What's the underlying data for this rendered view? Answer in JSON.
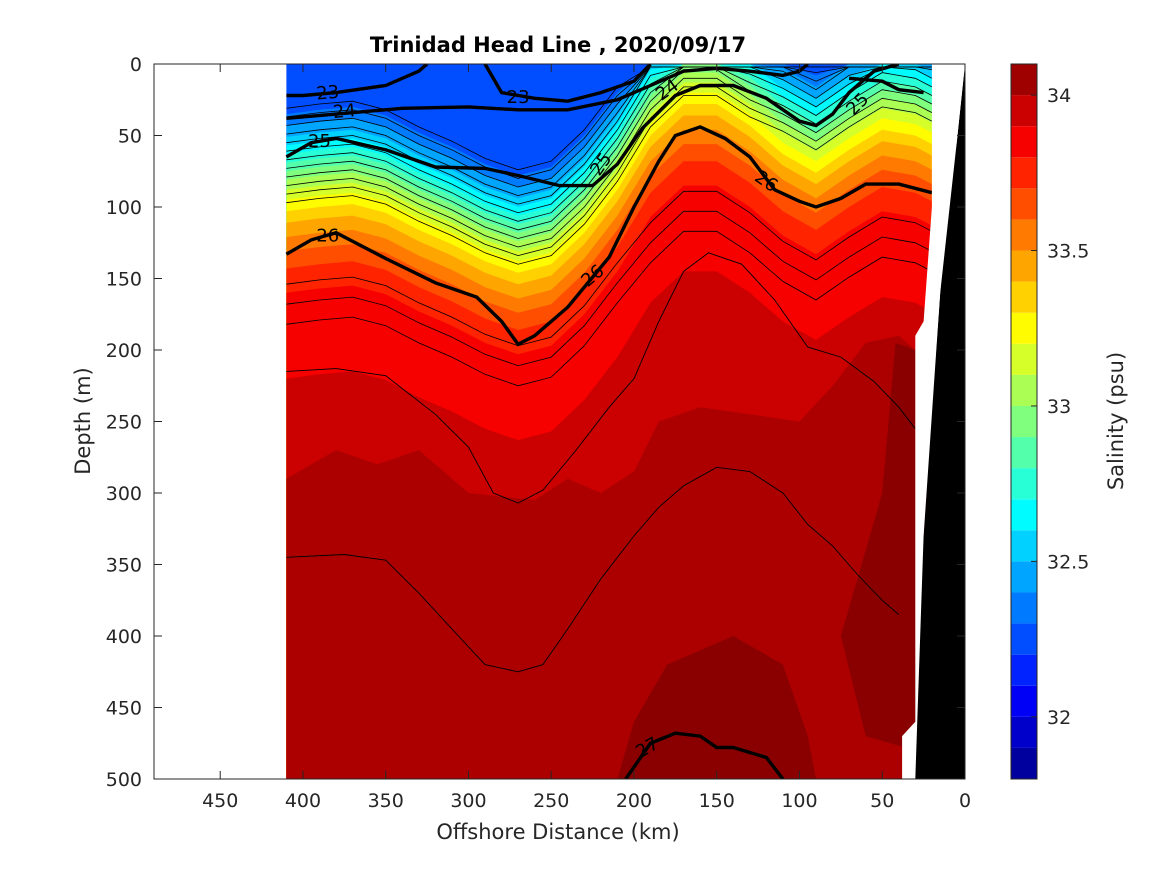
{
  "chart_data": {
    "type": "contourf",
    "title": "Trinidad Head Line , 2020/09/17",
    "xlabel": "Offshore Distance (km)",
    "ylabel": "Depth (m)",
    "xlim": [
      490,
      0
    ],
    "ylim": [
      0,
      500
    ],
    "x_reversed": true,
    "y_reversed": true,
    "xticks": [
      450,
      400,
      350,
      300,
      250,
      200,
      150,
      100,
      50,
      0
    ],
    "yticks": [
      0,
      50,
      100,
      150,
      200,
      250,
      300,
      350,
      400,
      450,
      500
    ],
    "data_extent_km": [
      410,
      20
    ],
    "colorbar": {
      "label": "Salinity (psu)",
      "range": [
        31.8,
        34.1
      ],
      "ticks": [
        32,
        32.5,
        33,
        33.5,
        34
      ],
      "levels": [
        31.8,
        31.9,
        32.0,
        32.1,
        32.2,
        32.3,
        32.4,
        32.5,
        32.6,
        32.7,
        32.8,
        32.9,
        33.0,
        33.1,
        33.2,
        33.3,
        33.4,
        33.5,
        33.6,
        33.7,
        33.8,
        33.9,
        34.0,
        34.1
      ],
      "colormap": "jet"
    },
    "salinity_fields": {
      "description": "Approximate salinity in data units at selected depths (km offshore)",
      "x_km": [
        410,
        360,
        310,
        260,
        210,
        160,
        110,
        60,
        20
      ],
      "surface": [
        32.3,
        32.3,
        32.2,
        32.0,
        32.3,
        32.9,
        32.7,
        33.1,
        32.9
      ],
      "halocline_depth_m": [
        140,
        165,
        190,
        230,
        150,
        45,
        120,
        90,
        100
      ]
    },
    "sigma_contours": {
      "labeled_levels": [
        23,
        24,
        25,
        26,
        27
      ],
      "series": [
        {
          "level": 23,
          "x": [
            410,
            400,
            380,
            350,
            330,
            325
          ],
          "y": [
            22,
            22,
            20,
            15,
            5,
            0
          ]
        },
        {
          "level": 23,
          "x": [
            290,
            280,
            260,
            240,
            220,
            200,
            190
          ],
          "y": [
            0,
            20,
            24,
            26,
            20,
            12,
            0
          ]
        },
        {
          "level": 24,
          "x": [
            410,
            380,
            340,
            300,
            270,
            240,
            210,
            190,
            170,
            150,
            130,
            110,
            100,
            95
          ],
          "y": [
            38,
            35,
            31,
            30,
            32,
            32,
            25,
            15,
            5,
            3,
            5,
            8,
            5,
            0
          ]
        },
        {
          "level": 24,
          "x": [
            70,
            50,
            40,
            25
          ],
          "y": [
            10,
            12,
            18,
            20
          ]
        },
        {
          "level": 25,
          "x": [
            410,
            395,
            380,
            350,
            320,
            290,
            270,
            245,
            225,
            210,
            195,
            175,
            160,
            140,
            120,
            100,
            90,
            80,
            70,
            55,
            40
          ],
          "y": [
            65,
            55,
            52,
            60,
            72,
            73,
            78,
            85,
            85,
            70,
            45,
            22,
            15,
            15,
            24,
            40,
            43,
            35,
            20,
            5,
            0
          ]
        },
        {
          "level": 26,
          "x": [
            410,
            395,
            380,
            350,
            320,
            295,
            280,
            270,
            260,
            240,
            215,
            200,
            185,
            175,
            160,
            145,
            130,
            115,
            100,
            90,
            75,
            60,
            40,
            20
          ],
          "y": [
            133,
            123,
            118,
            136,
            153,
            163,
            180,
            196,
            190,
            170,
            135,
            100,
            68,
            50,
            44,
            52,
            65,
            88,
            96,
            100,
            94,
            84,
            84,
            90
          ]
        },
        {
          "level": 27,
          "x": [
            205,
            190,
            175,
            160,
            150,
            140,
            120,
            110
          ],
          "y": [
            500,
            475,
            468,
            470,
            478,
            478,
            485,
            500
          ]
        }
      ]
    },
    "thin_contours_deep": [
      {
        "x": [
          410,
          380,
          350,
          320,
          300,
          285,
          270,
          255,
          235,
          215,
          200,
          185,
          170,
          155,
          135,
          115,
          95,
          75,
          55,
          40,
          30
        ],
        "y": [
          215,
          213,
          218,
          245,
          268,
          300,
          307,
          298,
          270,
          240,
          220,
          180,
          145,
          132,
          140,
          165,
          198,
          205,
          222,
          240,
          255
        ]
      },
      {
        "x": [
          410,
          375,
          350,
          330,
          310,
          290,
          270,
          255,
          240,
          220,
          200,
          185,
          170,
          150,
          130,
          110,
          95,
          80,
          65,
          50,
          40
        ],
        "y": [
          345,
          343,
          347,
          370,
          395,
          420,
          425,
          420,
          395,
          360,
          330,
          310,
          295,
          282,
          285,
          300,
          322,
          337,
          357,
          375,
          385
        ]
      }
    ],
    "bathymetry": {
      "x_km": [
        0,
        5,
        10,
        15,
        20,
        25,
        30,
        30
      ],
      "depth_m": [
        0,
        55,
        90,
        160,
        240,
        330,
        420,
        500
      ]
    }
  }
}
